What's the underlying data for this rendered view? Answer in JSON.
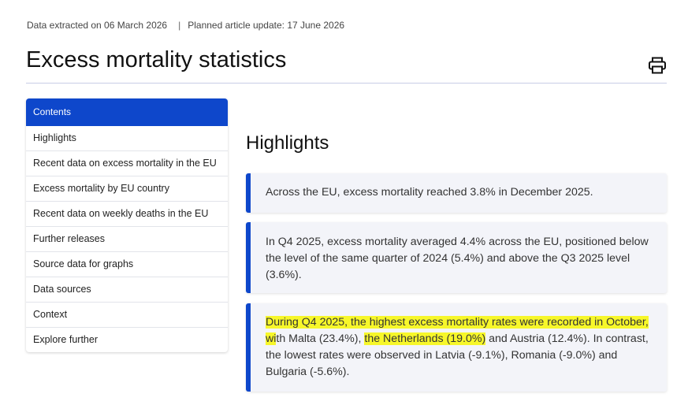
{
  "meta": {
    "extracted": "Data extracted on 06 March 2026",
    "separator": "|",
    "planned_update": "Planned article update: 17 June 2026"
  },
  "page": {
    "title": "Excess mortality statistics"
  },
  "toolbar": {
    "print_icon": "printer-icon"
  },
  "toc": {
    "header": "Contents",
    "items": [
      "Highlights",
      "Recent data on excess mortality in the EU",
      "Excess mortality by EU country",
      "Recent data on weekly deaths in the EU",
      "Further releases",
      "Source data for graphs",
      "Data sources",
      "Context",
      "Explore further"
    ]
  },
  "highlights": {
    "heading": "Highlights",
    "card1": "Across the EU, excess mortality reached 3.8% in December 2025.",
    "card2": "In Q4 2025, excess mortality averaged 4.4% across the EU, positioned below the level of the same quarter of 2024 (5.4%) and above the Q3 2025 level (3.6%).",
    "card3": {
      "hl1": "During Q4 2025, the highest excess mortality rates were recorded in October, wi",
      "t1": "th Malta (23.4%), ",
      "hl2": "the Netherlands (19.0%)",
      "t2": " and Austria (12.4%). In contrast, the lowest rates were observed in Latvia (-9.1%), Romania (-9.0%) and Bulgaria (-5.6%)."
    }
  },
  "colors": {
    "accent": "#0e47cb",
    "highlight": "#f7f72a",
    "card_bg": "#f3f4f9"
  }
}
